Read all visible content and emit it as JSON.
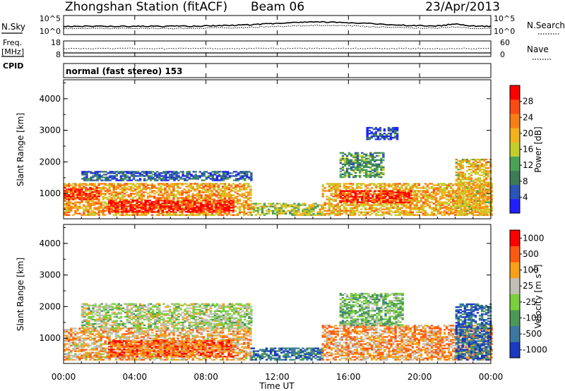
{
  "header": {
    "station": "Zhongshan Station (fitACF)",
    "beam": "Beam 06",
    "date": "23/Apr/2013"
  },
  "noise_panel": {
    "left_label": "N.Sky",
    "right_label": "N.Search",
    "left_ticks": [
      "10^5",
      "10^0"
    ],
    "right_ticks": [
      "10^5",
      "10^0"
    ]
  },
  "freq_panel": {
    "left_label_1": "Freq.",
    "left_label_2": "[MHz]",
    "left_ticks": [
      "18",
      "8"
    ],
    "right_label": "Nave",
    "right_ticks": [
      "60",
      "0"
    ],
    "cpid_label": "CPID"
  },
  "mode_text": "normal (fast stereo) 153",
  "colors": {
    "power_scale": [
      "#2020ff",
      "#2a55b8",
      "#3c7d58",
      "#4aa355",
      "#c2cf2a",
      "#f2b21c",
      "#f77e14",
      "#ff4a10",
      "#ff0000"
    ],
    "velocity_scale": [
      "#ff0000",
      "#ff5a10",
      "#f7a018",
      "#c0c0b4",
      "#7ad03a",
      "#4a9a55",
      "#3a78a2",
      "#1a3ac0"
    ]
  },
  "chart_data": [
    {
      "type": "heatmap",
      "name": "power",
      "ylabel": "Slant Range [km]",
      "y_ticks": [
        "1000",
        "2000",
        "3000",
        "4000"
      ],
      "ylim": [
        200,
        4600
      ],
      "xlim": [
        0,
        24
      ],
      "colorbar_label": "Power [dB]",
      "colorbar_ticks": [
        "4",
        "8",
        "12",
        "16",
        "20",
        "24",
        "28"
      ],
      "clim": [
        0,
        32
      ],
      "regions": [
        {
          "x": [
            0.0,
            10.5
          ],
          "y": [
            300,
            1300
          ],
          "level": 0.65
        },
        {
          "x": [
            2.5,
            9.5
          ],
          "y": [
            400,
            800
          ],
          "level": 0.95
        },
        {
          "x": [
            0.0,
            2.0
          ],
          "y": [
            800,
            1200
          ],
          "level": 0.9
        },
        {
          "x": [
            1.0,
            10.5
          ],
          "y": [
            1400,
            1700
          ],
          "level": 0.2
        },
        {
          "x": [
            10.5,
            14.5
          ],
          "y": [
            300,
            700
          ],
          "level": 0.5
        },
        {
          "x": [
            14.5,
            24.0
          ],
          "y": [
            300,
            1300
          ],
          "level": 0.62
        },
        {
          "x": [
            15.5,
            19.5
          ],
          "y": [
            700,
            1100
          ],
          "level": 0.9
        },
        {
          "x": [
            15.5,
            18.0
          ],
          "y": [
            1500,
            2300
          ],
          "level": 0.35
        },
        {
          "x": [
            17.0,
            18.8
          ],
          "y": [
            2700,
            3100
          ],
          "level": 0.15
        },
        {
          "x": [
            22.0,
            24.0
          ],
          "y": [
            300,
            2100
          ],
          "level": 0.6
        }
      ]
    },
    {
      "type": "heatmap",
      "name": "velocity",
      "ylabel": "Slant Range [km]",
      "y_ticks": [
        "1000",
        "2000",
        "3000",
        "4000"
      ],
      "ylim": [
        200,
        4600
      ],
      "xlim": [
        0,
        24
      ],
      "colorbar_label": "Velocity [m s^-1]",
      "colorbar_ticks": [
        "1000",
        "500",
        "100",
        "25",
        "-25",
        "-100",
        "-500",
        "-1000"
      ],
      "regions": [
        {
          "x": [
            0.0,
            10.5
          ],
          "y": [
            300,
            1300
          ],
          "level": 0.35
        },
        {
          "x": [
            2.5,
            9.5
          ],
          "y": [
            400,
            900
          ],
          "level": 0.2
        },
        {
          "x": [
            1.0,
            10.5
          ],
          "y": [
            1300,
            2100
          ],
          "level": 0.5
        },
        {
          "x": [
            10.5,
            14.5
          ],
          "y": [
            300,
            700
          ],
          "level": 0.8
        },
        {
          "x": [
            14.5,
            24.0
          ],
          "y": [
            300,
            1400
          ],
          "level": 0.3
        },
        {
          "x": [
            15.5,
            19.0
          ],
          "y": [
            1400,
            2400
          ],
          "level": 0.6
        },
        {
          "x": [
            22.0,
            24.0
          ],
          "y": [
            300,
            2100
          ],
          "level": 0.85
        }
      ]
    }
  ],
  "time_axis": {
    "ticks": [
      "00:00",
      "04:00",
      "08:00",
      "12:00",
      "16:00",
      "20:00",
      "00:00"
    ],
    "xlabel": "Time UT"
  }
}
